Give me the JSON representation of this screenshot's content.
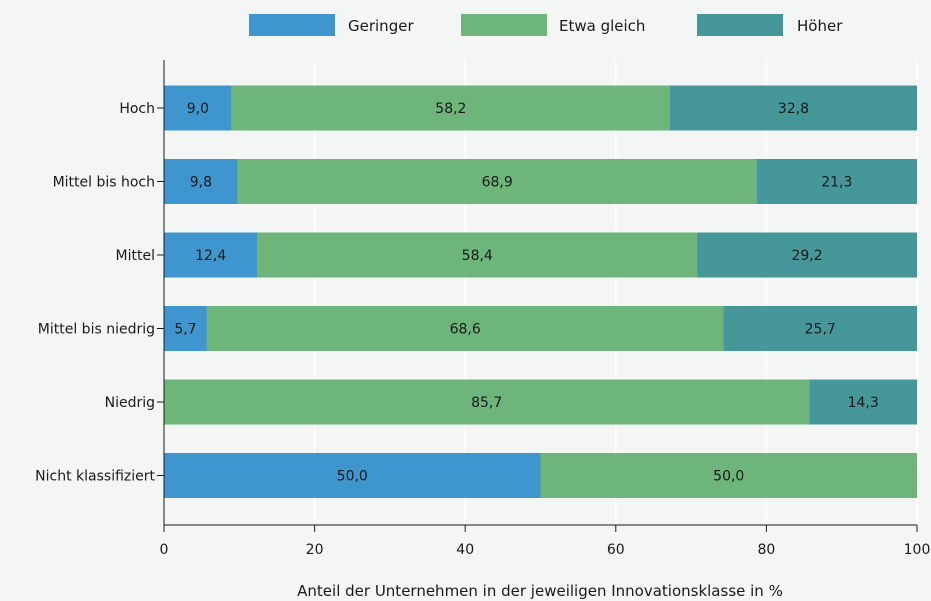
{
  "chart_data": {
    "type": "bar",
    "orientation": "horizontal",
    "stacked": true,
    "categories": [
      "Hoch",
      "Mittel bis hoch",
      "Mittel",
      "Mittel bis niedrig",
      "Niedrig",
      "Nicht klassifiziert"
    ],
    "series": [
      {
        "name": "Geringer",
        "color": "#3f95cd",
        "values": [
          9.0,
          9.8,
          12.4,
          5.7,
          0,
          50.0
        ],
        "labels": [
          "9,0",
          "9,8",
          "12,4",
          "5,7",
          "",
          "50,0"
        ]
      },
      {
        "name": "Etwa gleich",
        "color": "#6db57a",
        "values": [
          58.2,
          68.9,
          58.4,
          68.6,
          85.7,
          50.0
        ],
        "labels": [
          "58,2",
          "68,9",
          "58,4",
          "68,6",
          "85,7",
          "50,0"
        ]
      },
      {
        "name": "Höher",
        "color": "#46979a",
        "values": [
          32.8,
          21.3,
          29.2,
          25.7,
          14.3,
          0
        ],
        "labels": [
          "32,8",
          "21,3",
          "29,2",
          "25,7",
          "14,3",
          ""
        ]
      }
    ],
    "xlabel": "Anteil der Unternehmen in der jeweiligen Innovationsklasse in %",
    "ylabel": "",
    "xlim": [
      0,
      100
    ],
    "xticks": [
      0,
      20,
      40,
      60,
      80,
      100
    ],
    "grid": "vertical",
    "legend": "top"
  }
}
